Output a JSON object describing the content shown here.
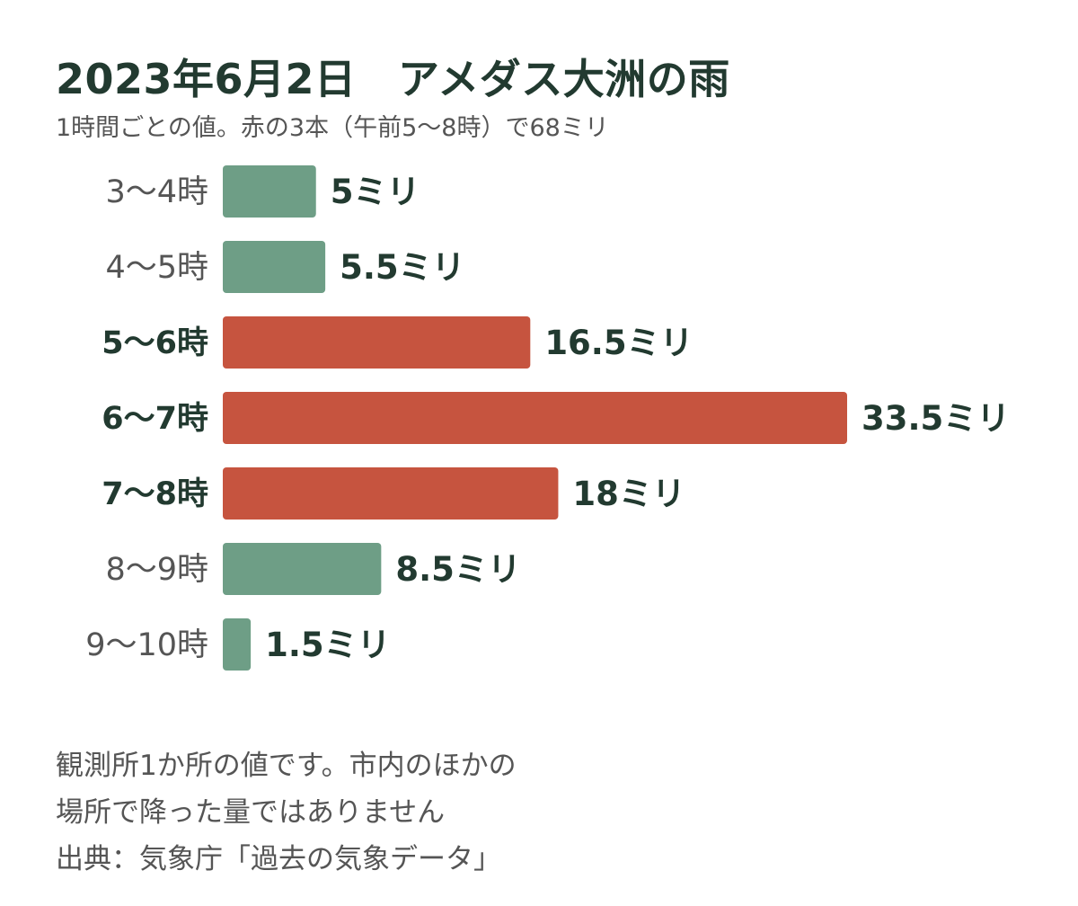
{
  "title": "2023年6月2日　アメダス大洲の雨",
  "subtitle": "1時間ごとの値。赤の3本（午前5〜8時）で68ミリ",
  "colors": {
    "normal": "#6e9e86",
    "highlight": "#c6543f",
    "text_dark": "#223a30",
    "text_gray": "#555555"
  },
  "chart_data": {
    "type": "bar",
    "orientation": "horizontal",
    "categories": [
      "3〜4時",
      "4〜5時",
      "5〜6時",
      "6〜7時",
      "7〜8時",
      "8〜9時",
      "9〜10時"
    ],
    "values": [
      5,
      5.5,
      16.5,
      33.5,
      18,
      8.5,
      1.5
    ],
    "value_labels": [
      "5ミリ",
      "5.5ミリ",
      "16.5ミリ",
      "33.5ミリ",
      "18ミリ",
      "8.5ミリ",
      "1.5ミリ"
    ],
    "highlighted": [
      false,
      false,
      true,
      true,
      true,
      false,
      false
    ],
    "unit": "ミリ",
    "xlim": [
      0,
      33.5
    ]
  },
  "notes": [
    "観測所1か所の値です。市内のほかの",
    "場所で降った量ではありません",
    "出典：気象庁「過去の気象データ」"
  ]
}
